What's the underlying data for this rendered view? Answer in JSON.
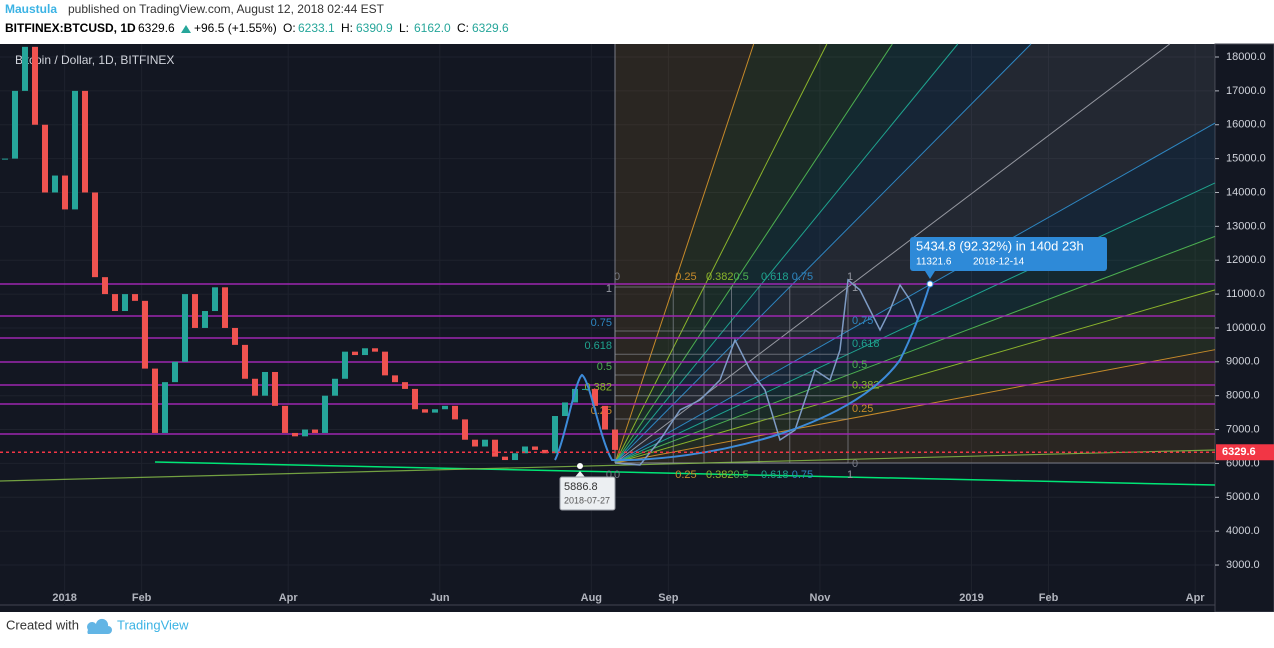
{
  "header": {
    "author": "Maustula",
    "published": "published on TradingView.com, August 12, 2018 02:44 EST",
    "symbol": "BITFINEX:BTCUSD, 1D",
    "last": "6329.6",
    "change": "+96.5 (+1.55%)",
    "ohlc": [
      {
        "label": "O:",
        "value": "6233.1"
      },
      {
        "label": "H:",
        "value": "6390.9"
      },
      {
        "label": "L:",
        "value": "6162.0"
      },
      {
        "label": "C:",
        "value": "6329.6"
      }
    ]
  },
  "chart_data": {
    "type": "candlestick",
    "title": "Bitcoin / Dollar, 1D, BITFINEX",
    "values": [
      15000,
      17000,
      18300,
      16000,
      14000,
      14500,
      13500,
      17000,
      14000,
      11500,
      11000,
      10500,
      11000,
      10800,
      8800,
      6900,
      8400,
      9000,
      11000,
      10000,
      10500,
      11200,
      10000,
      9500,
      8500,
      8000,
      8700,
      7700,
      6900,
      6800,
      7000,
      6900,
      8000,
      8500,
      9300,
      9200,
      9400,
      9300,
      8600,
      8400,
      8200,
      7600,
      7500,
      7600,
      7700,
      7300,
      6700,
      6500,
      6700,
      6200,
      6100,
      6300,
      6500,
      6400,
      6300,
      7400,
      7800,
      8200,
      8200,
      7700,
      7000,
      6400
    ],
    "up_color": "#26a69a",
    "down_color": "#ef5350",
    "ylim": [
      1820,
      18384
    ],
    "yticks": [
      {
        "value": 3000,
        "label": "3000.0"
      },
      {
        "value": 4000,
        "label": "4000.0"
      },
      {
        "value": 5000,
        "label": "5000.0"
      },
      {
        "value": 6000,
        "label": "6000.0"
      },
      {
        "value": 7000,
        "label": "7000.0"
      },
      {
        "value": 8000,
        "label": "8000.0"
      },
      {
        "value": 9000,
        "label": "9000.0"
      },
      {
        "value": 10000,
        "label": "10000.0"
      },
      {
        "value": 11000,
        "label": "11000.0"
      },
      {
        "value": 12000,
        "label": "12000.0"
      },
      {
        "value": 13000,
        "label": "13000.0"
      },
      {
        "value": 14000,
        "label": "14000.0"
      },
      {
        "value": 15000,
        "label": "15000.0"
      },
      {
        "value": 16000,
        "label": "16000.0"
      },
      {
        "value": 17000,
        "label": "17000.0"
      },
      {
        "value": 18000,
        "label": "18000.0"
      }
    ],
    "xlim": [
      -26,
      463
    ],
    "xticks": [
      {
        "value": 0,
        "label": "2018"
      },
      {
        "value": 31,
        "label": "Feb"
      },
      {
        "value": 90,
        "label": "Apr"
      },
      {
        "value": 151,
        "label": "Jun"
      },
      {
        "value": 212,
        "label": "Aug"
      },
      {
        "value": 243,
        "label": "Sep"
      },
      {
        "value": 304,
        "label": "Nov"
      },
      {
        "value": 365,
        "label": "2019"
      },
      {
        "value": 396,
        "label": "Feb"
      },
      {
        "value": 455,
        "label": "Apr"
      }
    ],
    "current_price": 6329.6,
    "current_price_label": "6329.6",
    "horizontal_levels": [
      11298,
      10353,
      9704,
      8995,
      8316,
      7755,
      6869
    ],
    "fib_levels": [
      0,
      0.25,
      0.382,
      0.5,
      0.618,
      0.75,
      1
    ],
    "fib_colors": [
      "#787b86",
      "#c68a2a",
      "#8bb42c",
      "#4caf50",
      "#1fa38f",
      "#2e86c1",
      "#9598a1"
    ],
    "measure": {
      "text": "5434.8 (92.32%) in 140d 23h",
      "price": "11321.6",
      "date": "2018-12-14"
    },
    "low_label": {
      "price": "5886.8",
      "date": "2018-07-27"
    }
  },
  "footer": {
    "created": "Created with",
    "brand": "TradingView"
  }
}
